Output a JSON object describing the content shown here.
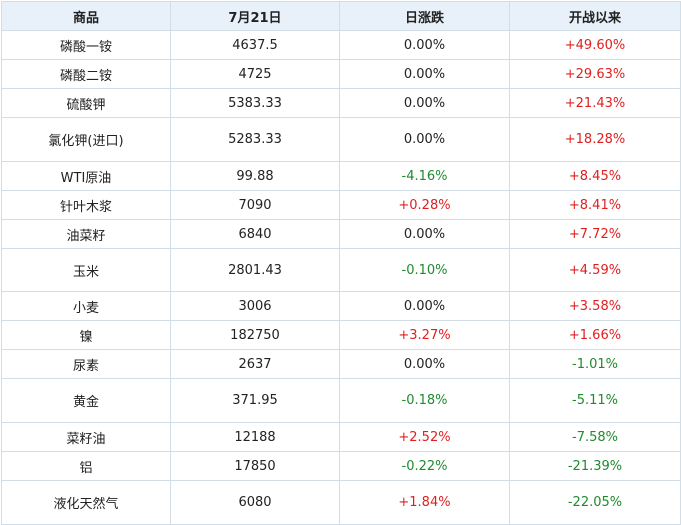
{
  "table": {
    "headers": [
      "商品",
      "7月21日",
      "日涨跌",
      "开战以来"
    ],
    "rows": [
      {
        "name": "磷酸一铵",
        "price": "4637.5",
        "daily": "0.00%",
        "since": "+49.60%"
      },
      {
        "name": "磷酸二铵",
        "price": "4725",
        "daily": "0.00%",
        "since": "+29.63%"
      },
      {
        "name": "硫酸钾",
        "price": "5383.33",
        "daily": "0.00%",
        "since": "+21.43%"
      },
      {
        "name": "氯化钾(进口)",
        "price": "5283.33",
        "daily": "0.00%",
        "since": "+18.28%"
      },
      {
        "name": "WTI原油",
        "price": "99.88",
        "daily": "-4.16%",
        "since": "+8.45%"
      },
      {
        "name": "针叶木浆",
        "price": "7090",
        "daily": "+0.28%",
        "since": "+8.41%"
      },
      {
        "name": "油菜籽",
        "price": "6840",
        "daily": "0.00%",
        "since": "+7.72%"
      },
      {
        "name": "玉米",
        "price": "2801.43",
        "daily": "-0.10%",
        "since": "+4.59%"
      },
      {
        "name": "小麦",
        "price": "3006",
        "daily": "0.00%",
        "since": "+3.58%"
      },
      {
        "name": "镍",
        "price": "182750",
        "daily": "+3.27%",
        "since": "+1.66%"
      },
      {
        "name": "尿素",
        "price": "2637",
        "daily": "0.00%",
        "since": "-1.01%"
      },
      {
        "name": "黄金",
        "price": "371.95",
        "daily": "-0.18%",
        "since": "-5.11%"
      },
      {
        "name": "菜籽油",
        "price": "12188",
        "daily": "+2.52%",
        "since": "-7.58%"
      },
      {
        "name": "铝",
        "price": "17850",
        "daily": "-0.22%",
        "since": "-21.39%"
      },
      {
        "name": "液化天然气",
        "price": "6080",
        "daily": "+1.84%",
        "since": "-22.05%"
      }
    ]
  },
  "colors": {
    "header_bg": "#e8f1fa",
    "border": "#d3dde6",
    "positive": "#e02020",
    "negative": "#1f8a2e"
  }
}
